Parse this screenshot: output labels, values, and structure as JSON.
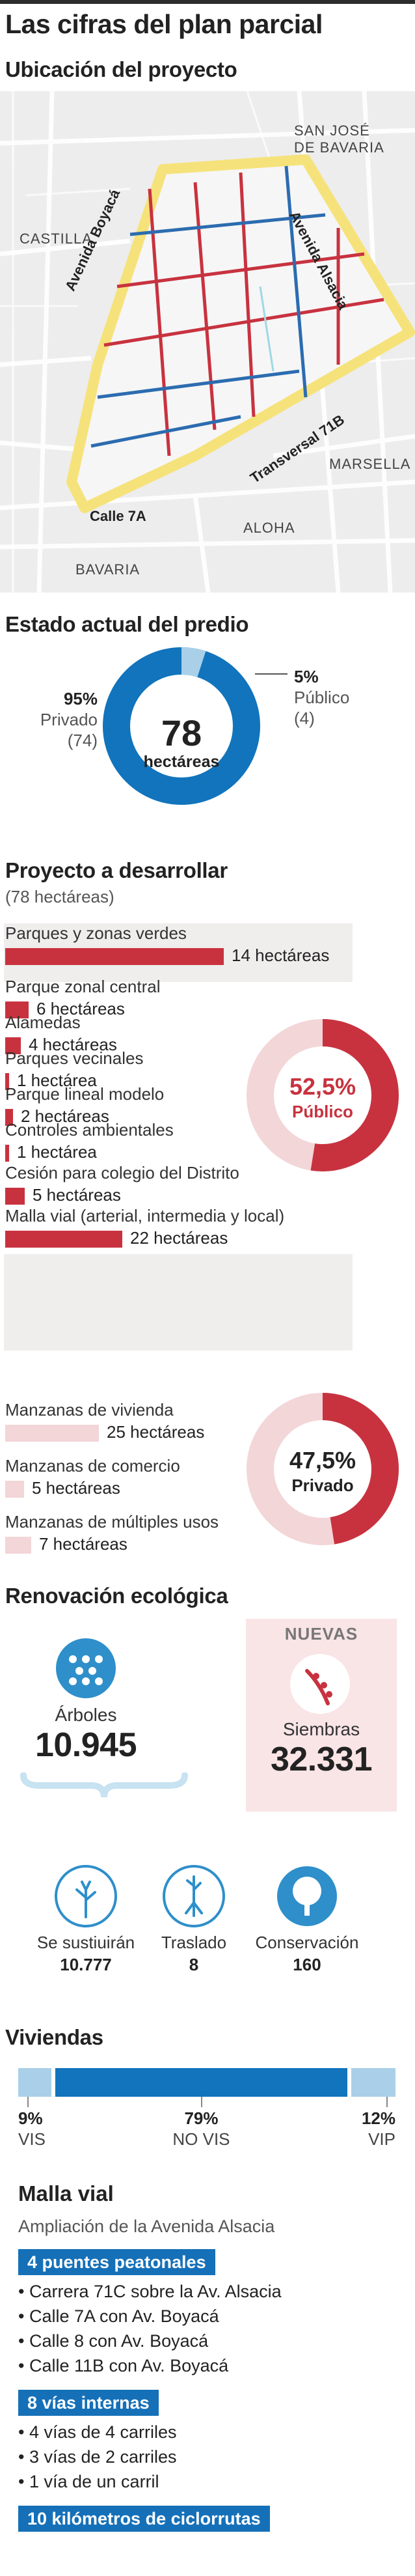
{
  "title": "Las cifras del plan parcial",
  "location": {
    "heading": "Ubicación del proyecto",
    "neighborhoods": [
      "SAN JOSÉ",
      "DE BAVARIA",
      "CASTILLA",
      "MARSELLA",
      "ALOHA",
      "BAVARIA"
    ],
    "streets": [
      "Avenida Boyacá",
      "Avenida Alsacia",
      "Transversal 71B",
      "Calle 7A"
    ]
  },
  "current_state": {
    "heading": "Estado actual del predio",
    "total": "78",
    "unit": "hectáreas",
    "private_pct": "95%",
    "private_label": "Privado",
    "private_value": "(74)",
    "public_pct": "5%",
    "public_label": "Público",
    "public_value": "(4)",
    "colors": {
      "private": "#1174bc",
      "public": "#a9d0e8"
    }
  },
  "project": {
    "heading": "Proyecto a desarrollar",
    "subheading": "(78 hectáreas)",
    "public_items": [
      {
        "label": "Parques y zonas verdes",
        "value": "14 hectáreas",
        "ha": 14
      },
      {
        "label": "Parque zonal central",
        "value": "6 hectáreas",
        "ha": 6
      },
      {
        "label": "Alamedas",
        "value": "4 hectáreas",
        "ha": 4
      },
      {
        "label": "Parques vecinales",
        "value": "1 hectárea",
        "ha": 1
      },
      {
        "label": "Parque lineal modelo",
        "value": "2 hectáreas",
        "ha": 2
      },
      {
        "label": "Controles ambientales",
        "value": "1 hectárea",
        "ha": 1
      },
      {
        "label": "Cesión para colegio del Distrito",
        "value": "5 hectáreas",
        "ha": 5
      },
      {
        "label": "Malla vial (arterial, intermedia y local)",
        "value": "22 hectáreas",
        "ha": 22
      }
    ],
    "public_pct": "52,5%",
    "public_label": "Público",
    "private_items": [
      {
        "label": "Manzanas de vivienda",
        "value": "25 hectáreas",
        "ha": 25
      },
      {
        "label": "Manzanas de comercio",
        "value": "5 hectáreas",
        "ha": 5
      },
      {
        "label": "Manzanas de múltiples usos",
        "value": "7 hectáreas",
        "ha": 7
      }
    ],
    "private_pct": "47,5%",
    "private_label": "Privado",
    "colors": {
      "public": "#c8323f",
      "private": "#f3d6d8"
    }
  },
  "ecology": {
    "heading": "Renovación ecológica",
    "trees_label": "Árboles",
    "trees_value": "10.945",
    "new_tag": "NUEVAS",
    "plantings_label": "Siembras",
    "plantings_value": "32.331",
    "outcomes": [
      {
        "label": "Se sustiuirán",
        "value": "10.777"
      },
      {
        "label": "Traslado",
        "value": "8"
      },
      {
        "label": "Conservación",
        "value": "160"
      }
    ]
  },
  "housing": {
    "heading": "Viviendas",
    "segments": [
      {
        "pct": "9%",
        "label": "VIS",
        "share": 9
      },
      {
        "pct": "79%",
        "label": "NO VIS",
        "share": 79
      },
      {
        "pct": "12%",
        "label": "VIP",
        "share": 12
      }
    ]
  },
  "roads": {
    "heading": "Malla vial",
    "subheading": "Ampliación de la Avenida Alsacia",
    "groups": [
      {
        "tag": "4 puentes peatonales",
        "items": [
          "Carrera 71C sobre la Av. Alsacia",
          "Calle 7A con Av. Boyacá",
          "Calle 8 con Av. Boyacá",
          "Calle 11B con Av. Boyacá"
        ]
      },
      {
        "tag": "8 vías internas",
        "items": [
          "4 vías de 4 carriles",
          "3 vías de 2 carriles",
          "1 vía de un carril"
        ]
      },
      {
        "tag": "10 kilómetros de ciclorrutas",
        "items": []
      }
    ]
  }
}
